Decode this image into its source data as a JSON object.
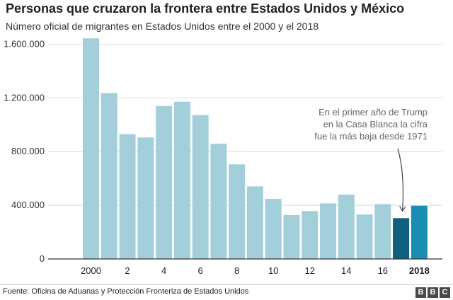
{
  "header": {
    "title": "Personas que cruzaron la frontera entre Estados Unidos y México",
    "subtitle": "Número oficial de migrantes en Estados Unidos entre el 2000 y el 2018"
  },
  "chart_data": {
    "type": "bar",
    "categories": [
      "2000",
      "2001",
      "2002",
      "2003",
      "2004",
      "2005",
      "2006",
      "2007",
      "2008",
      "2009",
      "2010",
      "2011",
      "2012",
      "2013",
      "2014",
      "2015",
      "2016",
      "2017",
      "2018"
    ],
    "x_tick_labels": [
      "2000",
      "",
      "2",
      "",
      "4",
      "",
      "6",
      "",
      "8",
      "",
      "10",
      "",
      "12",
      "",
      "14",
      "",
      "16",
      "",
      "2018"
    ],
    "values": [
      1643679,
      1235718,
      929809,
      905065,
      1139282,
      1171396,
      1071972,
      858638,
      705005,
      540865,
      447731,
      327577,
      356873,
      414397,
      479371,
      331333,
      408870,
      303916,
      396579
    ],
    "highlighted_categories": [
      "2017",
      "2018"
    ],
    "y_ticks": [
      0,
      400000,
      800000,
      1200000,
      1600000
    ],
    "y_tick_labels": [
      "0",
      "400.000",
      "800.000",
      "1.200.000",
      "1.600.000"
    ],
    "ylim": [
      0,
      1750000
    ],
    "grid": true,
    "annotation": {
      "category": "2017",
      "lines": [
        "En el primer año de Trump",
        "en la Casa Blanca la cifra",
        "fue la más baja desde 1971"
      ]
    },
    "colors": {
      "bar": "#a3cfdb",
      "highlight_2017": "#0f5f7d",
      "highlight_2018": "#1a8db2",
      "grid": "#dddddd",
      "axis": "#333333",
      "annotation_text": "#666666"
    }
  },
  "footer": {
    "source": "Fuente: Oficina de Aduanas y Protección Fronteriza de Estados Unidos",
    "logo_letters": [
      "B",
      "B",
      "C"
    ]
  }
}
